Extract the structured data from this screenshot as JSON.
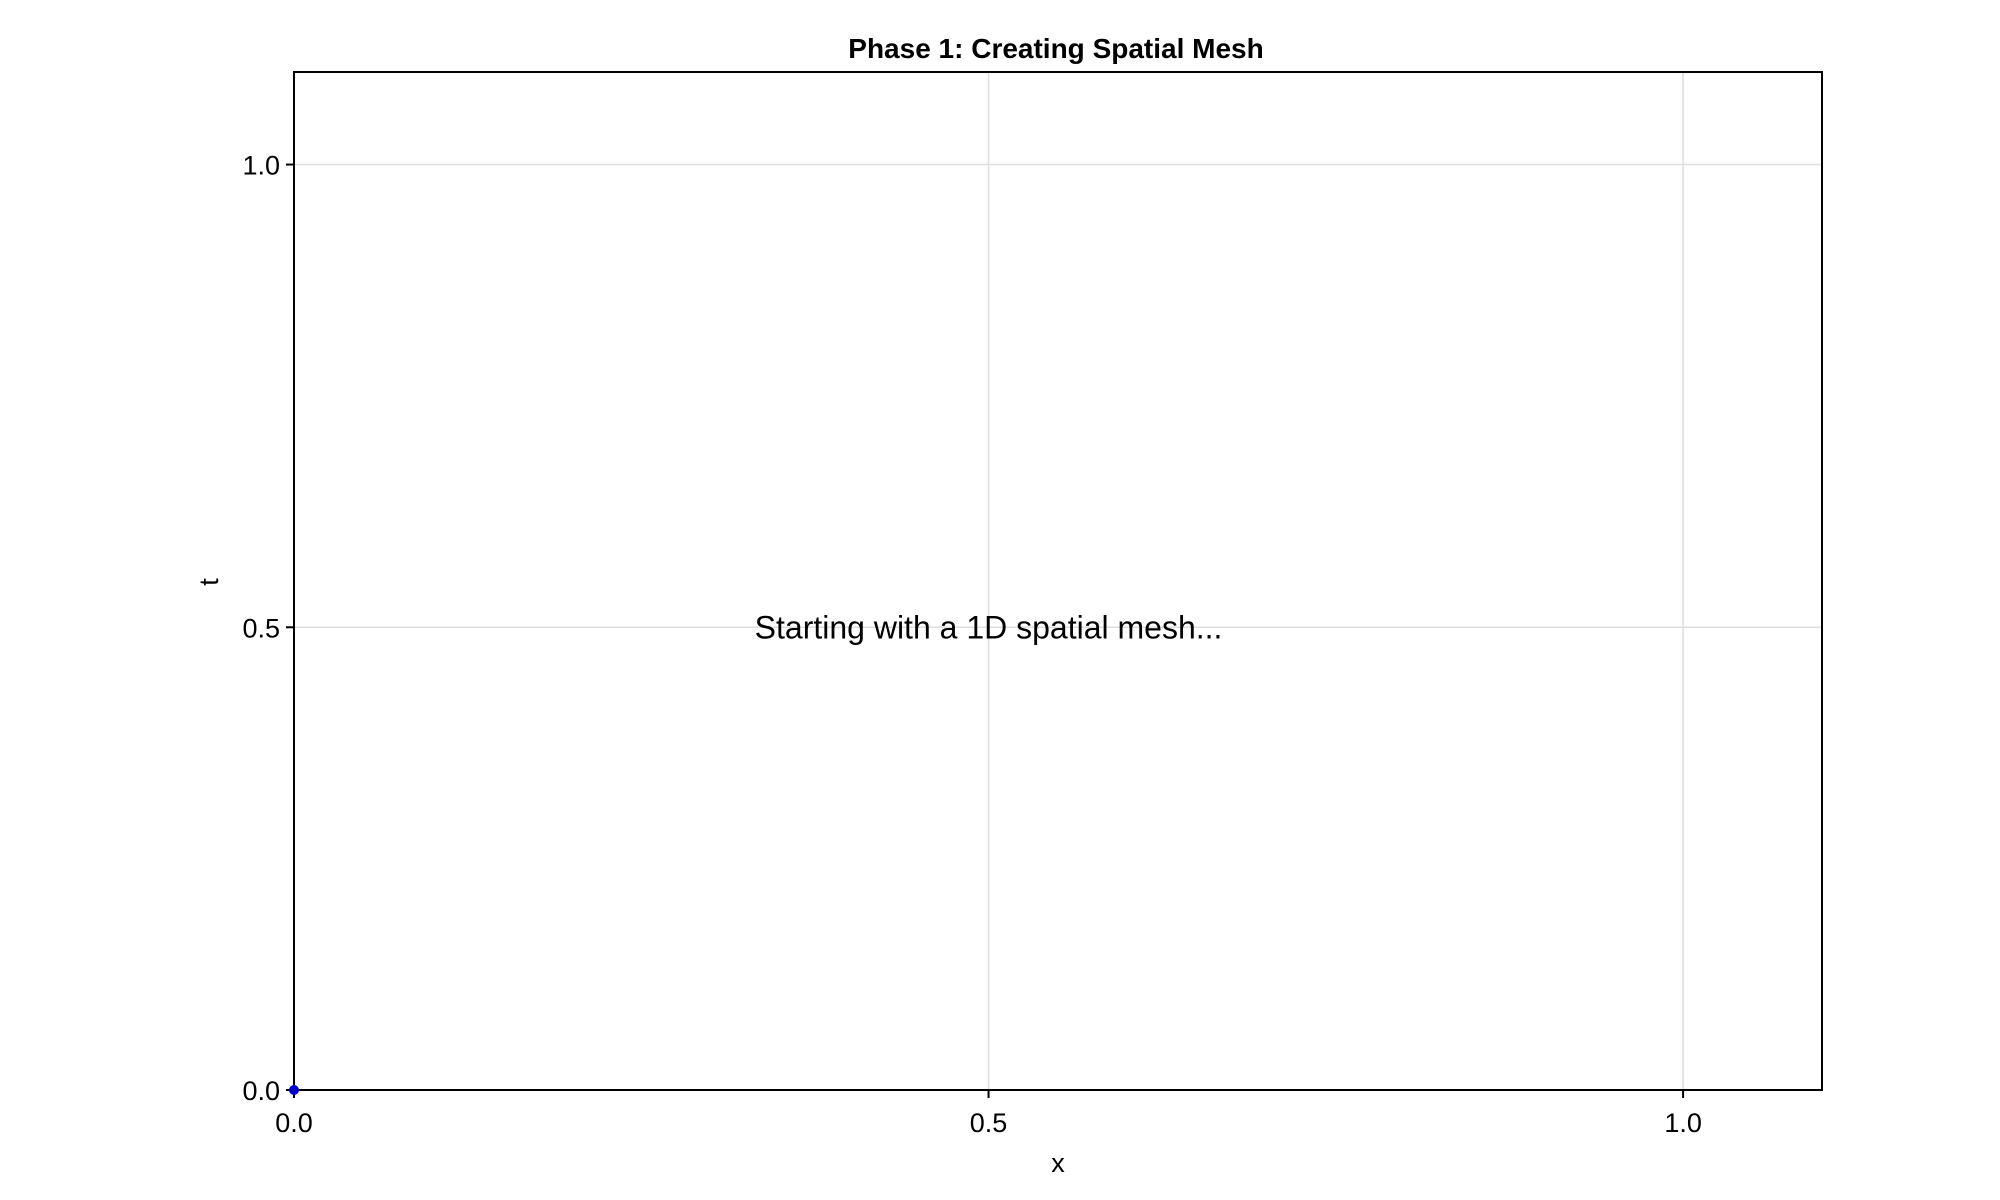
{
  "chart_data": {
    "type": "scatter",
    "title": "Phase 1: Creating Spatial Mesh",
    "xlabel": "x",
    "ylabel": "t",
    "xlim": [
      0.0,
      1.1
    ],
    "ylim": [
      0.0,
      1.1
    ],
    "xticks": [
      0.0,
      0.5,
      1.0
    ],
    "yticks": [
      0.0,
      0.5,
      1.0
    ],
    "xtick_labels": [
      "0.0",
      "0.5",
      "1.0"
    ],
    "ytick_labels": [
      "0.0",
      "0.5",
      "1.0"
    ],
    "grid": true,
    "series": [
      {
        "x": [
          0.0
        ],
        "y": [
          0.0
        ],
        "color": "#0000cc"
      }
    ],
    "annotations": [
      {
        "text": "Starting with a 1D spatial mesh...",
        "x": 0.5,
        "y": 0.5
      }
    ]
  }
}
